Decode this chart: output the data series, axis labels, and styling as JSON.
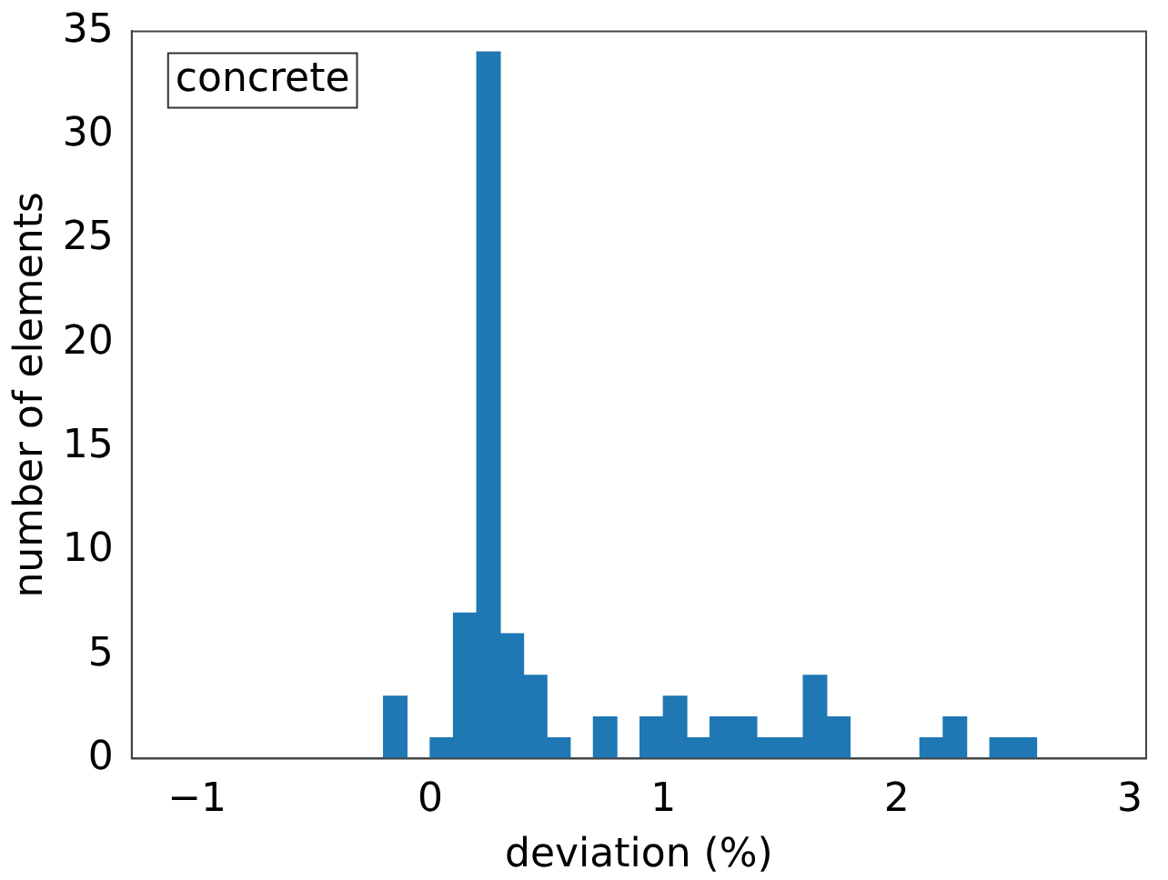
{
  "chart_data": {
    "type": "histogram",
    "xlabel": "deviation (%)",
    "ylabel": "number of elements",
    "annotations": [
      "concrete"
    ],
    "bins": [
      -0.2,
      -0.1,
      0,
      0.1,
      0.2,
      0.3,
      0.4,
      0.5,
      0.6,
      0.7,
      0.8,
      0.9,
      1.0,
      1.1,
      1.2,
      1.3,
      1.4,
      1.5,
      1.6,
      1.7,
      1.8,
      1.9,
      2.0,
      2.1,
      2.2,
      2.3,
      2.4,
      2.5,
      2.6
    ],
    "values": [
      3,
      0,
      1,
      7,
      34,
      6,
      4,
      1,
      0,
      2,
      0,
      2,
      3,
      1,
      2,
      2,
      1,
      1,
      4,
      2,
      0,
      0,
      0,
      1,
      2,
      0,
      1,
      1
    ],
    "color": "#1f77b4",
    "xlim": [
      -1.28,
      3.07
    ],
    "ylim": [
      0,
      35
    ],
    "xticks": [
      -1,
      0,
      1,
      2,
      3
    ],
    "yticks": [
      0,
      5,
      10,
      15,
      20,
      25,
      30,
      35
    ],
    "grid": false,
    "legend": false
  }
}
